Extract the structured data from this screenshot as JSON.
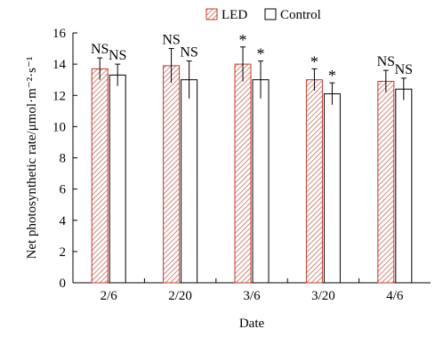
{
  "chart_data": {
    "type": "bar",
    "xlabel": "Date",
    "ylabel": "Net photosynthetic rate/μmol·m⁻²·s⁻¹",
    "categories": [
      "2/6",
      "2/20",
      "3/6",
      "3/20",
      "4/6"
    ],
    "ylim": [
      0,
      16
    ],
    "yticks": [
      0,
      2,
      4,
      6,
      8,
      10,
      12,
      14,
      16
    ],
    "legend_position": "top-center",
    "grid": false,
    "series": [
      {
        "name": "LED",
        "pattern": "red-hatched",
        "color": "#c0392b",
        "values": [
          13.7,
          13.9,
          14.0,
          13.0,
          12.9
        ],
        "errors": [
          0.7,
          1.1,
          1.1,
          0.7,
          0.7
        ],
        "significance": [
          "NS",
          "NS",
          "*",
          "*",
          "NS"
        ]
      },
      {
        "name": "Control",
        "pattern": "open",
        "color": "#000000",
        "values": [
          13.3,
          13.0,
          13.0,
          12.1,
          12.4
        ],
        "errors": [
          0.7,
          1.2,
          1.2,
          0.7,
          0.7
        ],
        "significance": [
          "NS",
          "NS",
          "*",
          "*",
          "NS"
        ]
      }
    ]
  }
}
